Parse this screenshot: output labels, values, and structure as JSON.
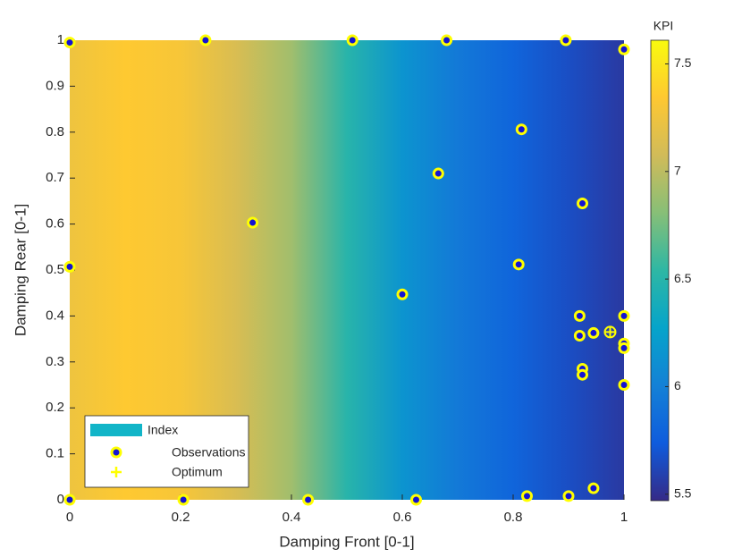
{
  "chart_data": {
    "type": "scatter",
    "x_label": "Damping Front [0-1]",
    "y_label": "Damping Rear [0-1]",
    "colorbar_label": "KPI",
    "xlim": [
      0,
      1
    ],
    "ylim": [
      0,
      1
    ],
    "xticks": [
      0,
      0.2,
      0.4,
      0.6,
      0.8,
      1
    ],
    "yticks": [
      0,
      0.1,
      0.2,
      0.3,
      0.4,
      0.5,
      0.6,
      0.7,
      0.8,
      0.9,
      1
    ],
    "clim": [
      5.47,
      7.61
    ],
    "cticks": [
      5.5,
      6,
      6.5,
      7,
      7.5
    ],
    "colormap": [
      "#352a87",
      "#0f5cdd",
      "#1481d6",
      "#06a4ca",
      "#2eb7a4",
      "#87bf77",
      "#d1bb59",
      "#fec832",
      "#f9fb0e"
    ],
    "surface": {
      "name": "Index",
      "color": "#12b5c8",
      "x": [
        0,
        0.1,
        0.2,
        0.3,
        0.4,
        0.5,
        0.6,
        0.7,
        0.8,
        0.9,
        1
      ],
      "values": [
        7.25,
        7.35,
        7.3,
        7.12,
        6.9,
        6.5,
        6.15,
        5.95,
        5.8,
        5.66,
        5.55
      ]
    },
    "series": [
      {
        "name": "Observations",
        "color": "#1414d2",
        "edge_color": "#ffff00",
        "x": [
          0,
          0.245,
          0.51,
          0.68,
          0.895,
          1,
          0.815,
          0.665,
          0.925,
          0.33,
          0,
          0.81,
          0.6,
          0.92,
          1,
          0.945,
          0.92,
          1,
          1,
          0.925,
          0.925,
          1,
          0,
          0.205,
          0.43,
          0.625,
          0.825,
          0.9,
          0.945
        ],
        "values": [
          0.995,
          1,
          1,
          1,
          1,
          0.98,
          0.806,
          0.71,
          0.645,
          0.603,
          0.507,
          0.512,
          0.447,
          0.4,
          0.4,
          0.363,
          0.357,
          0.34,
          0.33,
          0.285,
          0.272,
          0.25,
          0,
          0,
          0,
          0,
          0.008,
          0.008,
          0.025
        ]
      },
      {
        "name": "Optimum",
        "color": "#ffff00",
        "x": [
          0.975
        ],
        "values": [
          0.365
        ]
      }
    ]
  }
}
